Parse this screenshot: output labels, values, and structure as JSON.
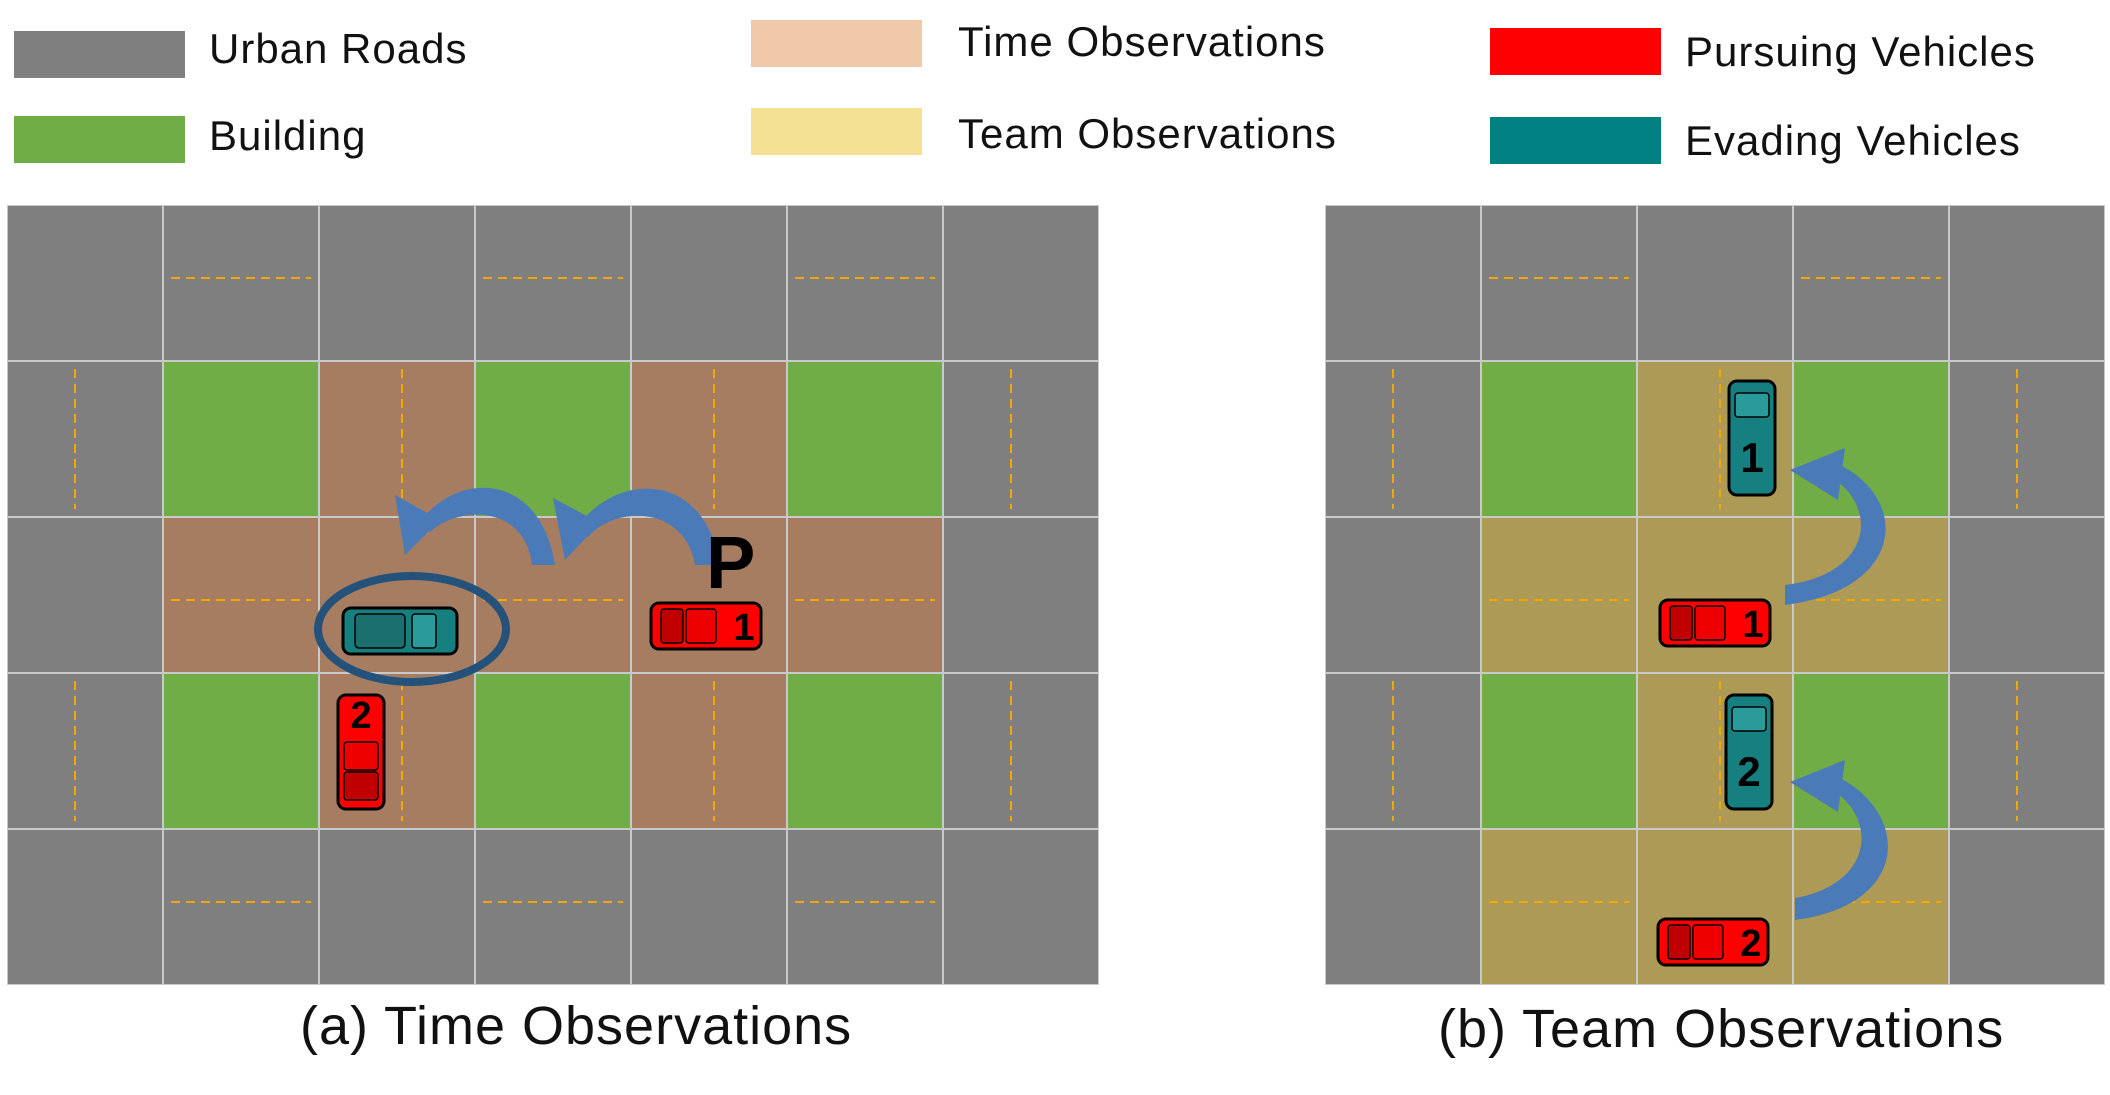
{
  "legend": [
    {
      "label": "Urban Roads",
      "color": "#7f7f7f"
    },
    {
      "label": "Building",
      "color": "#70ad47"
    },
    {
      "label": "Time Observations",
      "color": "#f0c8aa"
    },
    {
      "label": "Team Observations",
      "color": "#f5e194"
    },
    {
      "label": "Pursuing Vehicles",
      "color": "#ff0000"
    },
    {
      "label": "Evading Vehicles",
      "color": "#008080"
    }
  ],
  "colors": {
    "road": "#7f7f7f",
    "building": "#70ad47",
    "time_obs_cell": "#a77d62",
    "team_obs_cell": "#ad9a56",
    "lane_marking": "#f0a800",
    "arrow": "#4a7ab7",
    "circle": "#24527a",
    "pursuer": "#ff0000",
    "evader": "#168080"
  },
  "panel_a": {
    "caption": "(a) Time Observations",
    "p_label": "P",
    "grid": [
      [
        "road",
        "road",
        "road",
        "road",
        "road",
        "road",
        "road"
      ],
      [
        "road",
        "building",
        "time",
        "building",
        "time",
        "building",
        "road"
      ],
      [
        "road",
        "time",
        "time",
        "time",
        "time",
        "time",
        "road"
      ],
      [
        "road",
        "building",
        "time",
        "building",
        "time",
        "building",
        "road"
      ],
      [
        "road",
        "road",
        "road",
        "road",
        "road",
        "road",
        "road"
      ]
    ],
    "pursuers": [
      "1",
      "2"
    ]
  },
  "panel_b": {
    "caption": "(b) Team Observations",
    "grid": [
      [
        "road",
        "road",
        "road",
        "road",
        "road"
      ],
      [
        "road",
        "building",
        "team",
        "building",
        "road"
      ],
      [
        "road",
        "team",
        "team",
        "team",
        "road"
      ],
      [
        "road",
        "building",
        "team",
        "building",
        "road"
      ],
      [
        "road",
        "team",
        "team",
        "team",
        "road"
      ]
    ],
    "pursuers": [
      "1",
      "2"
    ],
    "evaders": [
      "1",
      "2"
    ]
  }
}
